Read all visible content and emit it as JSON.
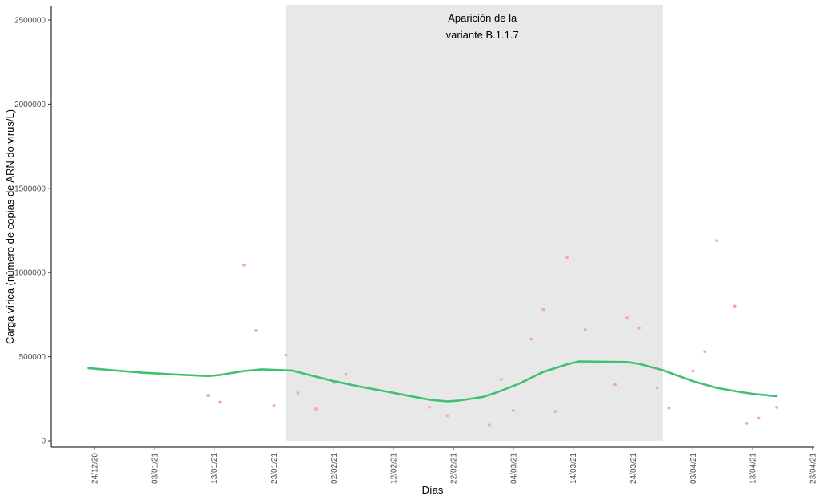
{
  "chart_data": {
    "type": "scatter",
    "xlabel": "Días",
    "ylabel": "Carga vírica (número de copias de ARN do virus/L)",
    "ylim": [
      0,
      2500000
    ],
    "y_ticks": [
      0,
      500000,
      1000000,
      1500000,
      2000000,
      2500000
    ],
    "y_tick_labels": [
      "0",
      "500000",
      "1000000",
      "1500000",
      "2000000",
      "2500000"
    ],
    "x_range": [
      "2020-12-24",
      "2021-04-23"
    ],
    "x_ticks": [
      "2020-12-24",
      "2021-01-03",
      "2021-01-13",
      "2021-01-23",
      "2021-02-02",
      "2021-02-12",
      "2021-02-22",
      "2021-03-04",
      "2021-03-14",
      "2021-03-24",
      "2021-04-03",
      "2021-04-13",
      "2021-04-23"
    ],
    "x_tick_labels": [
      "24/12/20",
      "03/01/21",
      "13/01/21",
      "23/01/21",
      "02/02/21",
      "12/02/21",
      "22/02/21",
      "04/03/21",
      "14/03/21",
      "24/03/21",
      "03/04/21",
      "13/04/21",
      "23/04/21"
    ],
    "shaded_region": {
      "x_start": "2021-01-25",
      "x_end": "2021-03-29",
      "label_line1": "Aparición de la",
      "label_line2": "variante B.1.1.7",
      "color": "#e8e8e8"
    },
    "points_color": "#f4a6b4",
    "smooth_color": "#3fc172",
    "points": [
      {
        "x": "2021-01-12",
        "y": 270000
      },
      {
        "x": "2021-01-14",
        "y": 230000
      },
      {
        "x": "2021-01-18",
        "y": 1045000
      },
      {
        "x": "2021-01-20",
        "y": 655000
      },
      {
        "x": "2021-01-23",
        "y": 210000
      },
      {
        "x": "2021-01-25",
        "y": 510000
      },
      {
        "x": "2021-01-27",
        "y": 285000
      },
      {
        "x": "2021-01-30",
        "y": 190000
      },
      {
        "x": "2021-02-02",
        "y": 345000
      },
      {
        "x": "2021-02-04",
        "y": 395000
      },
      {
        "x": "2021-02-18",
        "y": 200000
      },
      {
        "x": "2021-02-21",
        "y": 150000
      },
      {
        "x": "2021-02-28",
        "y": 95000
      },
      {
        "x": "2021-03-02",
        "y": 365000
      },
      {
        "x": "2021-03-04",
        "y": 180000
      },
      {
        "x": "2021-03-07",
        "y": 605000
      },
      {
        "x": "2021-03-09",
        "y": 780000
      },
      {
        "x": "2021-03-11",
        "y": 175000
      },
      {
        "x": "2021-03-13",
        "y": 1090000
      },
      {
        "x": "2021-03-16",
        "y": 660000
      },
      {
        "x": "2021-03-21",
        "y": 335000
      },
      {
        "x": "2021-03-23",
        "y": 730000
      },
      {
        "x": "2021-03-25",
        "y": 670000
      },
      {
        "x": "2021-03-28",
        "y": 315000
      },
      {
        "x": "2021-03-30",
        "y": 195000
      },
      {
        "x": "2021-04-03",
        "y": 415000
      },
      {
        "x": "2021-04-05",
        "y": 530000
      },
      {
        "x": "2021-04-07",
        "y": 1190000
      },
      {
        "x": "2021-04-10",
        "y": 800000
      },
      {
        "x": "2021-04-12",
        "y": 105000
      },
      {
        "x": "2021-04-14",
        "y": 135000
      },
      {
        "x": "2021-04-17",
        "y": 200000
      }
    ],
    "smooth_line": [
      {
        "x": "2020-12-23",
        "y": 432000
      },
      {
        "x": "2020-12-27",
        "y": 420000
      },
      {
        "x": "2021-01-01",
        "y": 405000
      },
      {
        "x": "2021-01-06",
        "y": 395000
      },
      {
        "x": "2021-01-12",
        "y": 385000
      },
      {
        "x": "2021-01-14",
        "y": 392000
      },
      {
        "x": "2021-01-18",
        "y": 415000
      },
      {
        "x": "2021-01-21",
        "y": 425000
      },
      {
        "x": "2021-01-26",
        "y": 418000
      },
      {
        "x": "2021-01-28",
        "y": 400000
      },
      {
        "x": "2021-02-02",
        "y": 355000
      },
      {
        "x": "2021-02-06",
        "y": 325000
      },
      {
        "x": "2021-02-12",
        "y": 285000
      },
      {
        "x": "2021-02-18",
        "y": 245000
      },
      {
        "x": "2021-02-21",
        "y": 235000
      },
      {
        "x": "2021-02-23",
        "y": 240000
      },
      {
        "x": "2021-02-27",
        "y": 262000
      },
      {
        "x": "2021-03-01",
        "y": 285000
      },
      {
        "x": "2021-03-05",
        "y": 340000
      },
      {
        "x": "2021-03-09",
        "y": 410000
      },
      {
        "x": "2021-03-13",
        "y": 455000
      },
      {
        "x": "2021-03-15",
        "y": 472000
      },
      {
        "x": "2021-03-19",
        "y": 470000
      },
      {
        "x": "2021-03-23",
        "y": 468000
      },
      {
        "x": "2021-03-25",
        "y": 458000
      },
      {
        "x": "2021-03-29",
        "y": 420000
      },
      {
        "x": "2021-04-03",
        "y": 355000
      },
      {
        "x": "2021-04-07",
        "y": 315000
      },
      {
        "x": "2021-04-11",
        "y": 290000
      },
      {
        "x": "2021-04-13",
        "y": 280000
      },
      {
        "x": "2021-04-17",
        "y": 265000
      }
    ]
  }
}
